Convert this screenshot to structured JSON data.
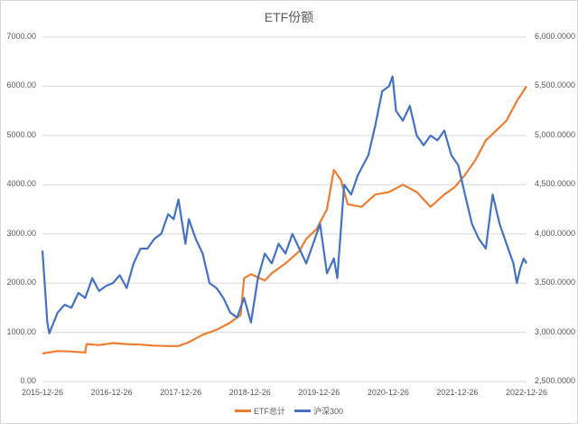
{
  "chart_data": {
    "type": "line",
    "title": "ETF份额",
    "xlabel": "",
    "ylabel_left": "",
    "ylabel_right": "",
    "left_axis": {
      "min": 0,
      "max": 7000,
      "ticks": [
        "0.00",
        "1000.00",
        "2000.00",
        "3000.00",
        "4000.00",
        "5000.00",
        "6000.00",
        "7000.00"
      ]
    },
    "right_axis": {
      "min": 2500,
      "max": 6000,
      "ticks": [
        "2,500.0000",
        "3,000.0000",
        "3,500.0000",
        "4,000.0000",
        "4,500.0000",
        "5,000.0000",
        "5,500.0000",
        "6,000.0000"
      ]
    },
    "x_ticks": [
      "2015-12-26",
      "2016-12-26",
      "2017-12-26",
      "2018-12-26",
      "2019-12-26",
      "2020-12-26",
      "2021-12-26",
      "2022-12-26"
    ],
    "grid": true,
    "legend_position": "bottom",
    "series": [
      {
        "name": "ETF总计",
        "axis": "left",
        "color": "#ED7D31",
        "x": [
          2015.98,
          2016.2,
          2016.4,
          2016.6,
          2016.62,
          2016.8,
          2017.0,
          2017.2,
          2017.4,
          2017.6,
          2017.8,
          2017.95,
          2018.1,
          2018.3,
          2018.5,
          2018.7,
          2018.85,
          2018.9,
          2019.0,
          2019.2,
          2019.3,
          2019.5,
          2019.7,
          2019.8,
          2019.95,
          2020.1,
          2020.2,
          2020.3,
          2020.4,
          2020.6,
          2020.8,
          2021.0,
          2021.2,
          2021.4,
          2021.6,
          2021.8,
          2021.95,
          2022.1,
          2022.25,
          2022.4,
          2022.55,
          2022.7,
          2022.85,
          2022.99
        ],
        "values": [
          570,
          620,
          610,
          590,
          760,
          740,
          780,
          760,
          750,
          730,
          720,
          720,
          800,
          950,
          1050,
          1200,
          1350,
          2100,
          2180,
          2050,
          2200,
          2400,
          2650,
          2900,
          3100,
          3500,
          4300,
          4100,
          3600,
          3550,
          3800,
          3850,
          4000,
          3850,
          3550,
          3800,
          3950,
          4200,
          4500,
          4900,
          5100,
          5300,
          5700,
          6000
        ]
      },
      {
        "name": "沪深300",
        "axis": "right",
        "color": "#4472C4",
        "x": [
          2015.98,
          2016.05,
          2016.08,
          2016.2,
          2016.3,
          2016.4,
          2016.5,
          2016.6,
          2016.7,
          2016.8,
          2016.9,
          2017.0,
          2017.1,
          2017.2,
          2017.3,
          2017.4,
          2017.5,
          2017.6,
          2017.7,
          2017.8,
          2017.88,
          2017.95,
          2018.05,
          2018.1,
          2018.2,
          2018.3,
          2018.4,
          2018.5,
          2018.6,
          2018.7,
          2018.8,
          2018.9,
          2019.0,
          2019.1,
          2019.2,
          2019.3,
          2019.4,
          2019.5,
          2019.6,
          2019.7,
          2019.8,
          2019.9,
          2020.0,
          2020.1,
          2020.2,
          2020.25,
          2020.35,
          2020.45,
          2020.55,
          2020.7,
          2020.8,
          2020.9,
          2021.0,
          2021.05,
          2021.1,
          2021.2,
          2021.3,
          2021.4,
          2021.5,
          2021.6,
          2021.7,
          2021.8,
          2021.9,
          2022.0,
          2022.1,
          2022.2,
          2022.3,
          2022.4,
          2022.5,
          2022.6,
          2022.7,
          2022.8,
          2022.85,
          2022.9,
          2022.95,
          2022.99
        ],
        "values": [
          3830,
          3100,
          2990,
          3200,
          3280,
          3250,
          3400,
          3350,
          3550,
          3420,
          3470,
          3500,
          3580,
          3450,
          3700,
          3850,
          3850,
          3950,
          4000,
          4200,
          4150,
          4350,
          3900,
          4150,
          3950,
          3800,
          3500,
          3450,
          3350,
          3200,
          3150,
          3350,
          3100,
          3550,
          3800,
          3700,
          3900,
          3800,
          4000,
          3850,
          3700,
          3900,
          4100,
          3600,
          3750,
          3550,
          4500,
          4400,
          4600,
          4800,
          5100,
          5450,
          5500,
          5600,
          5250,
          5150,
          5300,
          5000,
          4900,
          5000,
          4950,
          5050,
          4800,
          4700,
          4400,
          4100,
          3950,
          3850,
          4400,
          4100,
          3900,
          3700,
          3500,
          3650,
          3750,
          3700
        ]
      }
    ]
  },
  "legend": {
    "items": [
      {
        "label": "ETF总计",
        "color": "#ED7D31"
      },
      {
        "label": "沪深300",
        "color": "#4472C4"
      }
    ]
  }
}
